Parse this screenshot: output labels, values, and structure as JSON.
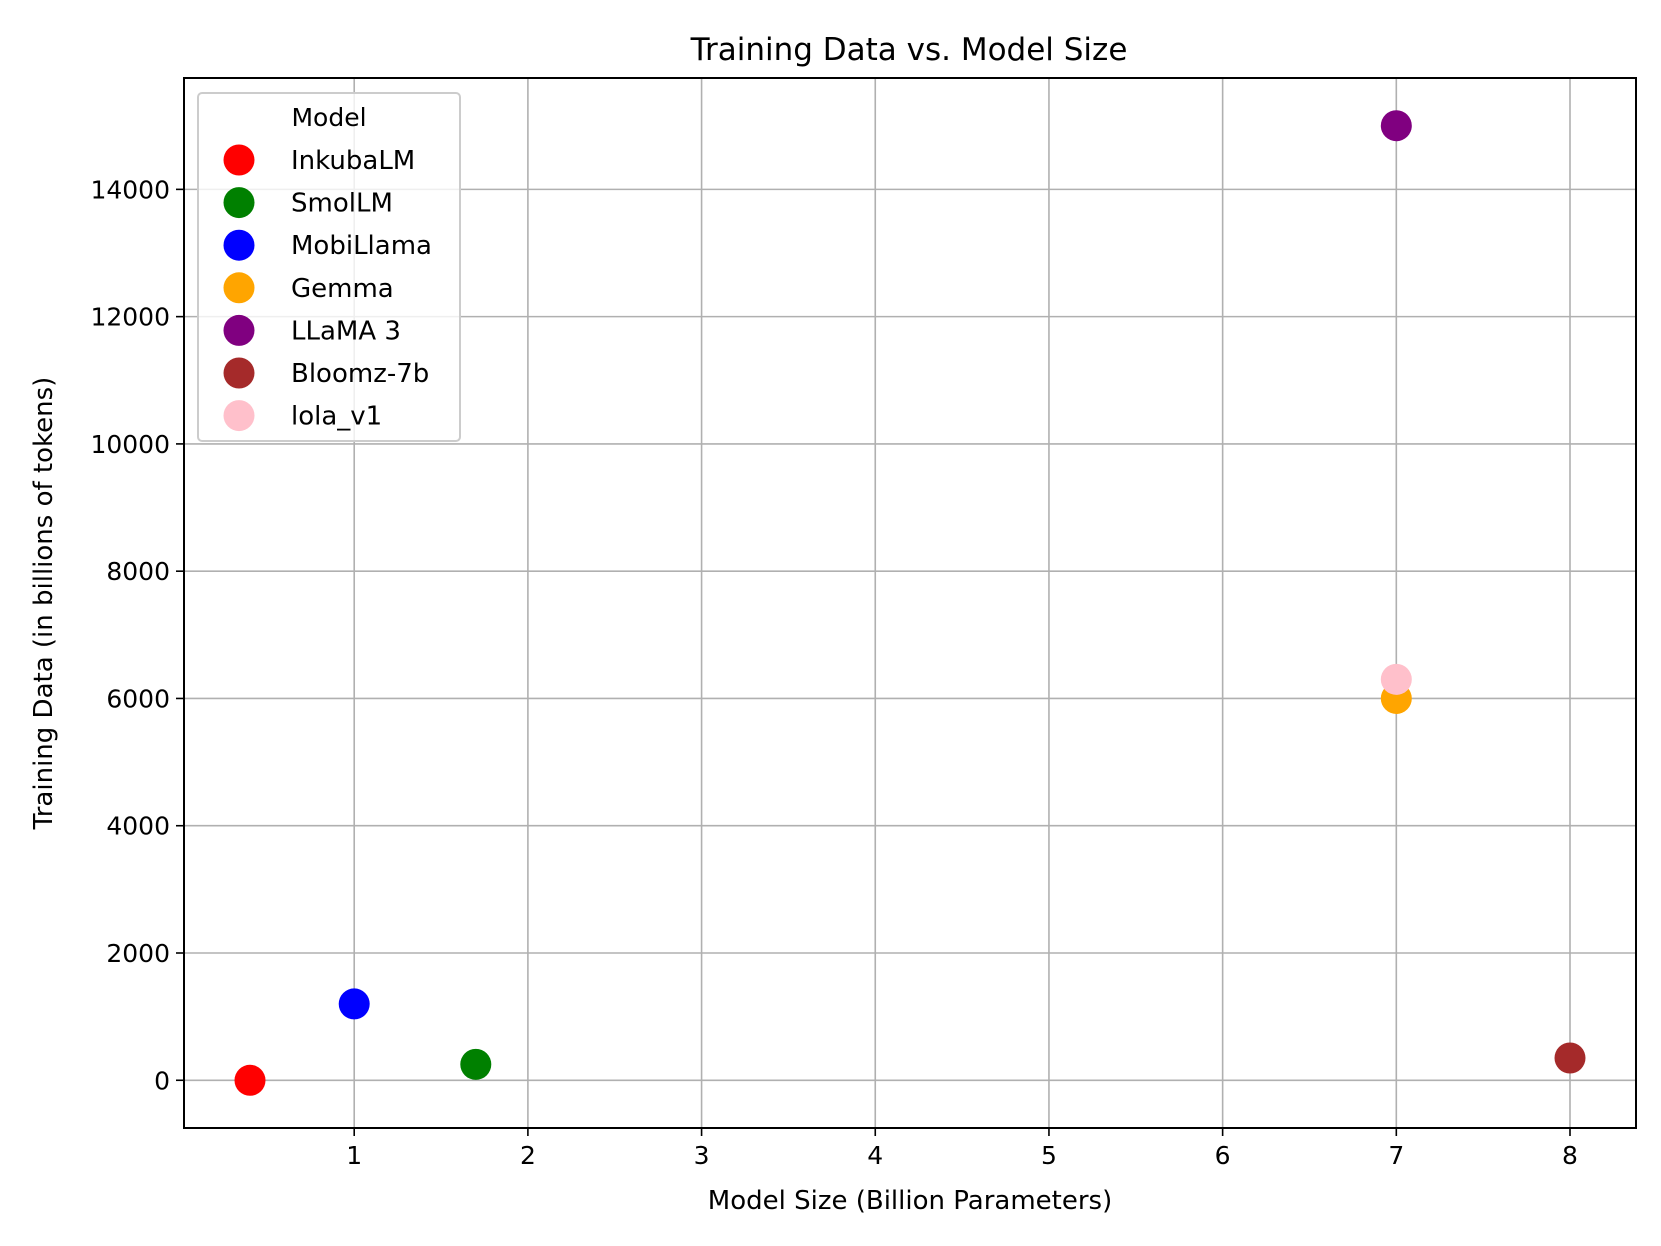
{
  "chart_data": {
    "type": "scatter",
    "title": "Training Data vs. Model Size",
    "xlabel": "Model Size (Billion Parameters)",
    "ylabel": "Training Data (in billions of tokens)",
    "xlim": [
      0.02,
      8.38
    ],
    "ylim": [
      -750,
      15750
    ],
    "xticks": [
      1,
      2,
      3,
      4,
      5,
      6,
      7,
      8
    ],
    "yticks": [
      0,
      2000,
      4000,
      6000,
      8000,
      10000,
      12000,
      14000
    ],
    "grid": true,
    "legend": {
      "title": "Model",
      "placement": "top-left"
    },
    "series": [
      {
        "name": "InkubaLM",
        "color": "#ff0000",
        "points": [
          [
            0.4,
            0
          ]
        ]
      },
      {
        "name": "SmolLM",
        "color": "#008000",
        "points": [
          [
            1.7,
            250
          ]
        ]
      },
      {
        "name": "MobiLlama",
        "color": "#0000ff",
        "points": [
          [
            1.0,
            1200
          ]
        ]
      },
      {
        "name": "Gemma",
        "color": "#ffa500",
        "points": [
          [
            7.0,
            6000
          ]
        ]
      },
      {
        "name": "LLaMA 3",
        "color": "#800080",
        "points": [
          [
            7.0,
            15000
          ]
        ]
      },
      {
        "name": "Bloomz-7b",
        "color": "#a52a2a",
        "points": [
          [
            8.0,
            350
          ]
        ]
      },
      {
        "name": "lola_v1",
        "color": "#ffc0cb",
        "points": [
          [
            7.0,
            6300
          ]
        ]
      }
    ]
  }
}
